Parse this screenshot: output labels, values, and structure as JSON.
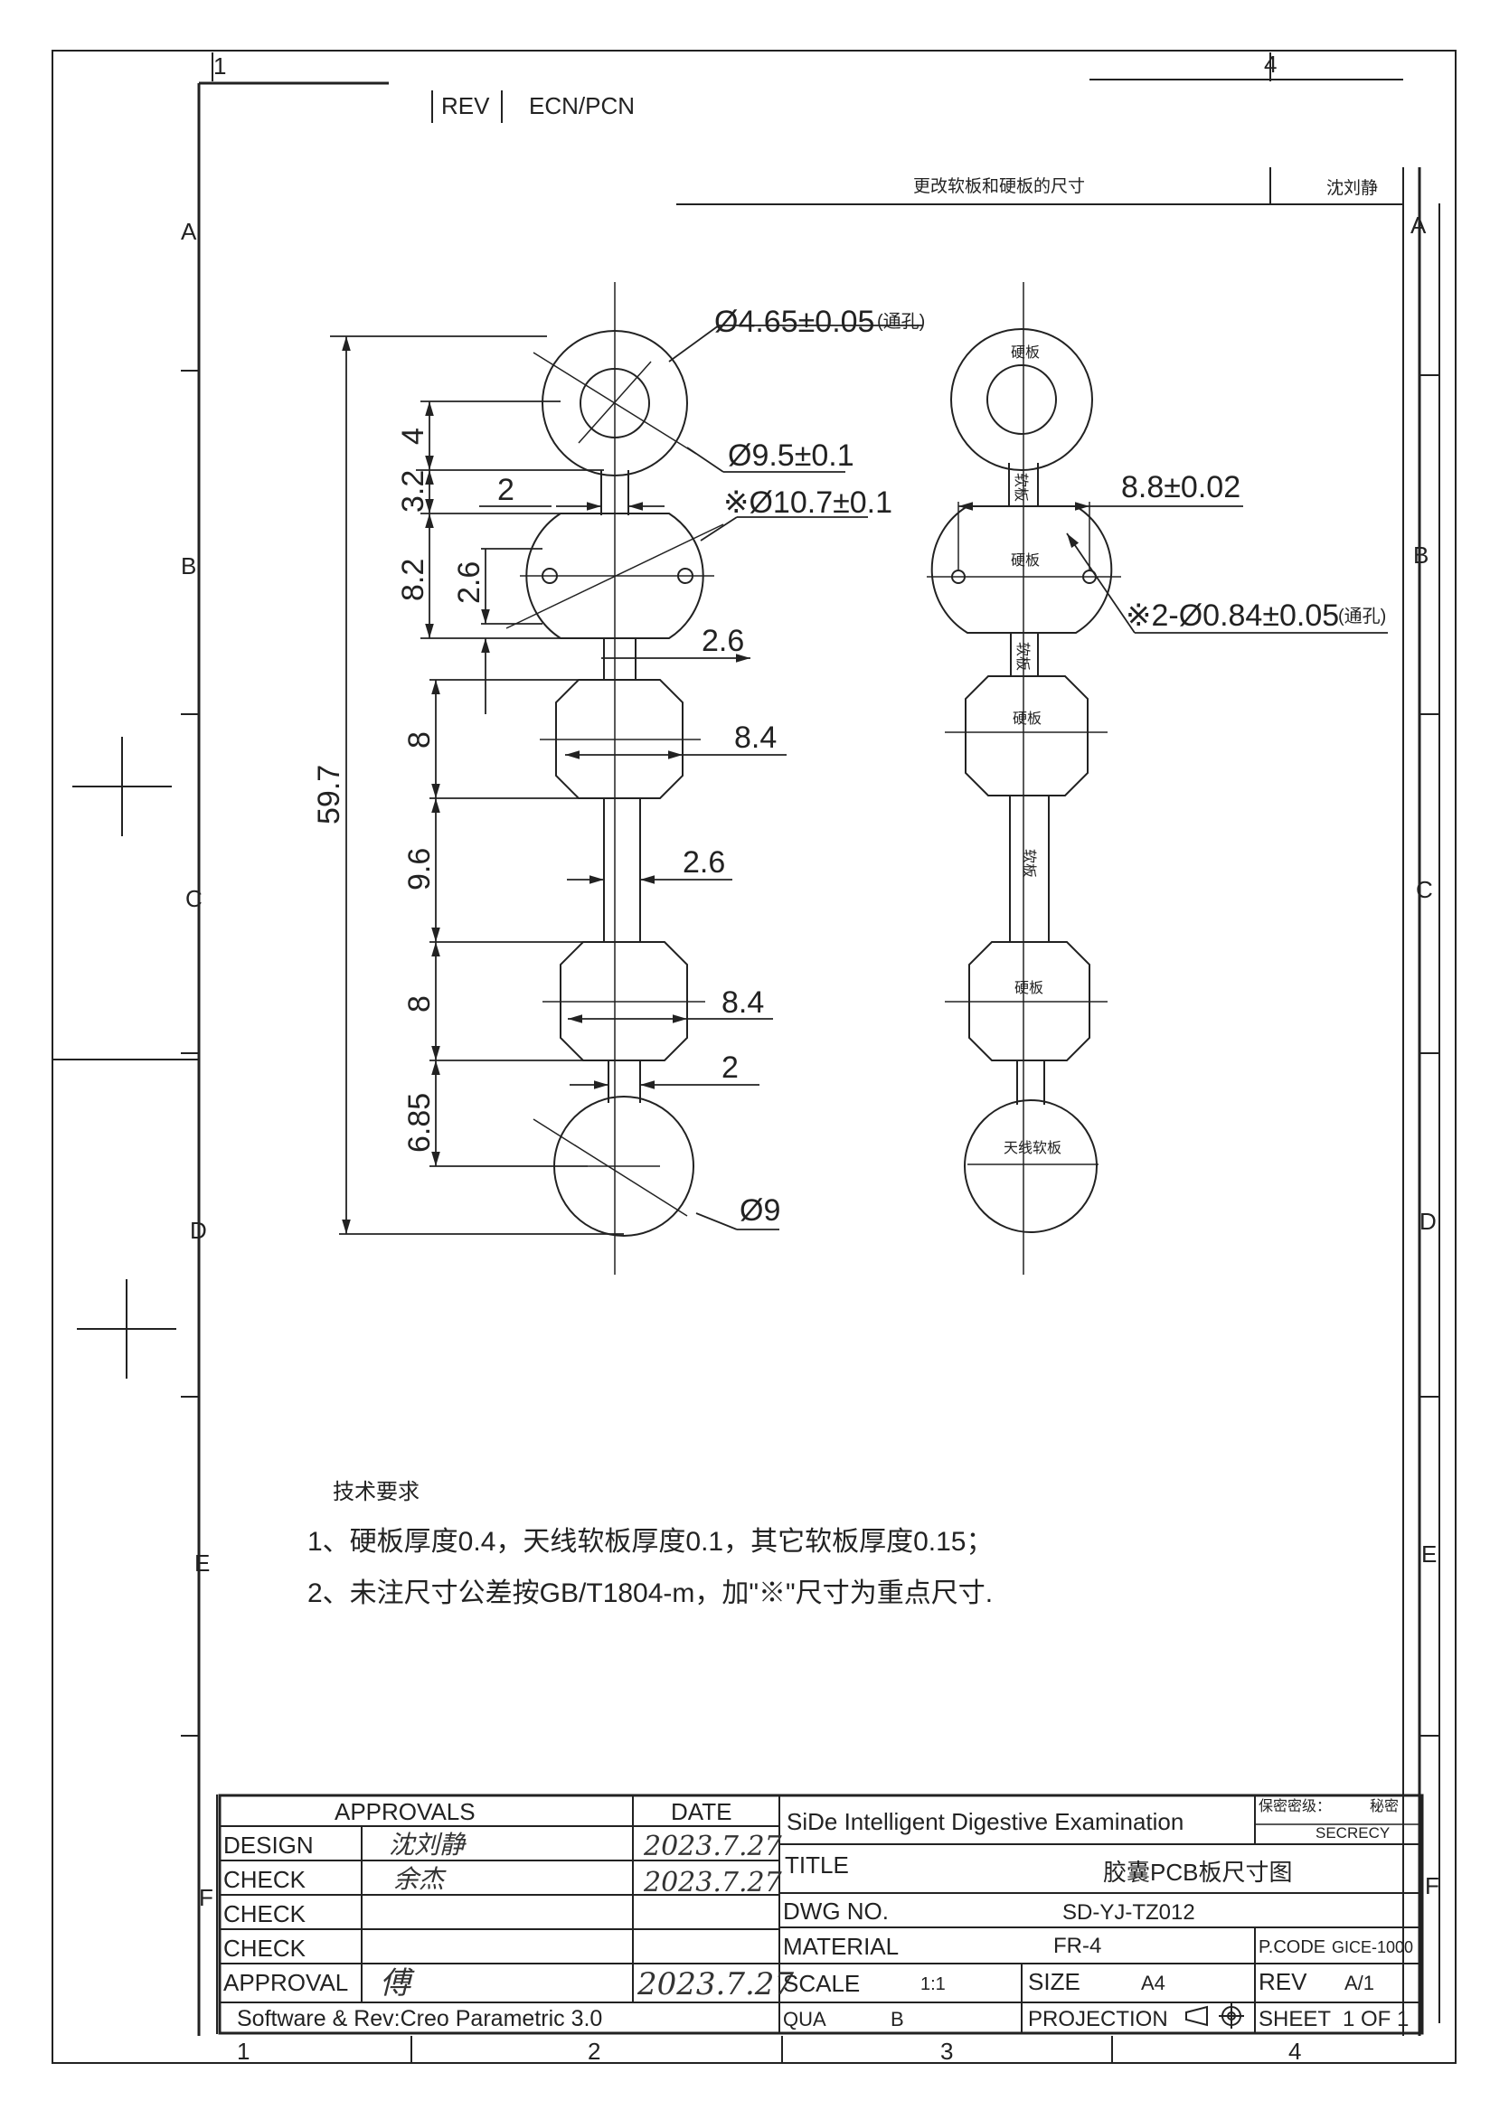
{
  "revision_block": {
    "rev_label": "REV",
    "ecn_label": "ECN/PCN",
    "change_note": "更改软板和硬板的尺寸",
    "changed_by": "沈刘静"
  },
  "zones": {
    "columns": [
      "1",
      "2",
      "3",
      "4"
    ],
    "rows": [
      "A",
      "B",
      "C",
      "D",
      "E",
      "F"
    ]
  },
  "left_view": {
    "dimensions": {
      "hole_diameter": "Ø4.65±0.05",
      "hole_note": "(通孔)",
      "pad_diameter": "Ø9.5±0.1",
      "board_diameter": "※Ø10.7±0.1",
      "height_4": "4",
      "height_3_2": "3.2",
      "neck_2": "2",
      "height_8_2": "8.2",
      "offset_2_6": "2.6",
      "neck_2_6": "2.6",
      "height_8_a": "8",
      "width_8_4_a": "8.4",
      "height_9_6": "9.6",
      "neck_2_6_b": "2.6",
      "height_8_b": "8",
      "width_8_4_b": "8.4",
      "neck_2_b": "2",
      "height_6_85": "6.85",
      "bottom_diameter": "Ø9",
      "total_length": "59.7"
    }
  },
  "right_view": {
    "labels": {
      "rigid_1": "硬板",
      "flex_1": "软板",
      "rigid_2": "硬板",
      "flex_2": "软板",
      "rigid_3": "硬板",
      "flex_3": "软板",
      "rigid_4": "硬板",
      "antenna_flex": "天线软板"
    },
    "dimensions": {
      "hole_spacing": "8.8±0.02",
      "small_holes": "※2-Ø0.84±0.05",
      "small_holes_note": "(通孔)"
    }
  },
  "technical_requirements": {
    "heading": "技术要求",
    "line1": "1、硬板厚度0.4，天线软板厚度0.1，其它软板厚度0.15；",
    "line2": "2、未注尺寸公差按GB/T1804-m，加\"※\"尺寸为重点尺寸."
  },
  "title_block": {
    "approvals_header": "APPROVALS",
    "date_header": "DATE",
    "rows": [
      {
        "role": "DESIGN",
        "signature": "沈刘静",
        "date": "2023.7.27"
      },
      {
        "role": "CHECK",
        "signature": "余杰",
        "date": "2023.7.27"
      },
      {
        "role": "CHECK",
        "signature": "",
        "date": ""
      },
      {
        "role": "CHECK",
        "signature": "",
        "date": ""
      },
      {
        "role": "APPROVAL",
        "signature": "傅",
        "date": "2023.7.27"
      }
    ],
    "software": "Software & Rev:Creo Parametric 3.0",
    "company": "SiDe Intelligent Digestive Examination",
    "secrecy_label": "保密密级：",
    "secrecy_value": "秘密",
    "secrecy_en": "SECRECY",
    "title_label": "TITLE",
    "title_value": "胶囊PCB板尺寸图",
    "dwg_label": "DWG NO.",
    "dwg_value": "SD-YJ-TZ012",
    "material_label": "MATERIAL",
    "material_value": "FR-4",
    "pcode_label": "P.CODE",
    "pcode_value": "GICE-1000",
    "scale_label": "SCALE",
    "scale_value": "1:1",
    "size_label": "SIZE",
    "size_value": "A4",
    "rev_label": "REV",
    "rev_value": "A/1",
    "qua_label": "QUA",
    "qua_value": "B",
    "projection_label": "PROJECTION",
    "sheet_label": "SHEET",
    "sheet_value": "1 OF 1"
  }
}
